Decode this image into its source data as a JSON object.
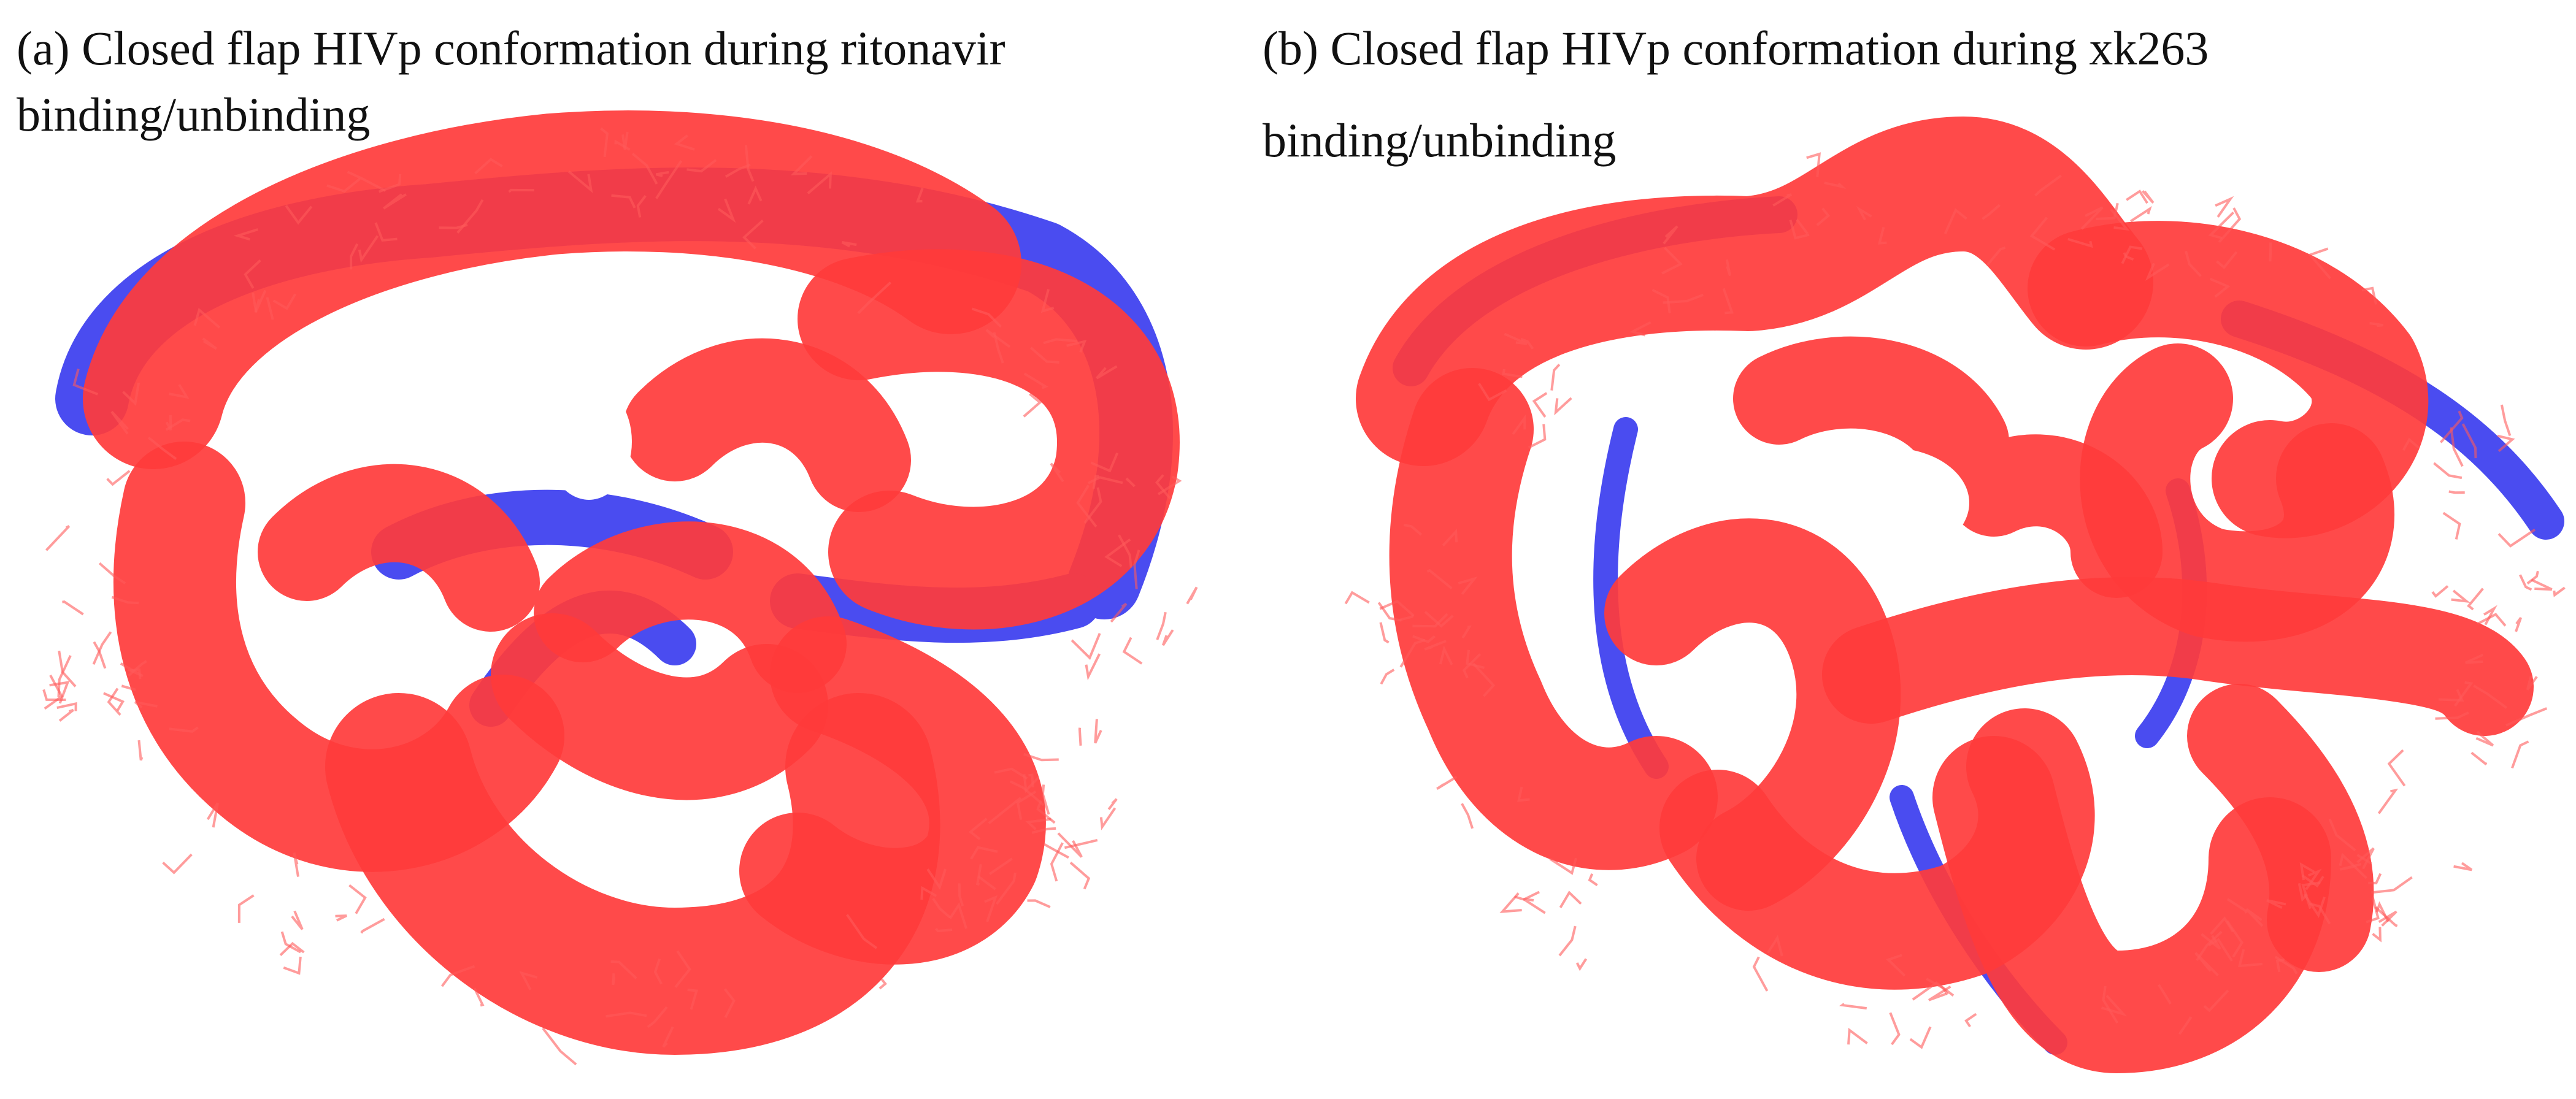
{
  "panels": [
    {
      "caption_lines": [
        "(a) Closed flap HIVp conformation during ritonavir",
        "binding/unbinding"
      ]
    },
    {
      "caption_lines": [
        "(b) Closed flap HIVp conformation during xk263",
        "binding/unbinding"
      ]
    }
  ]
}
